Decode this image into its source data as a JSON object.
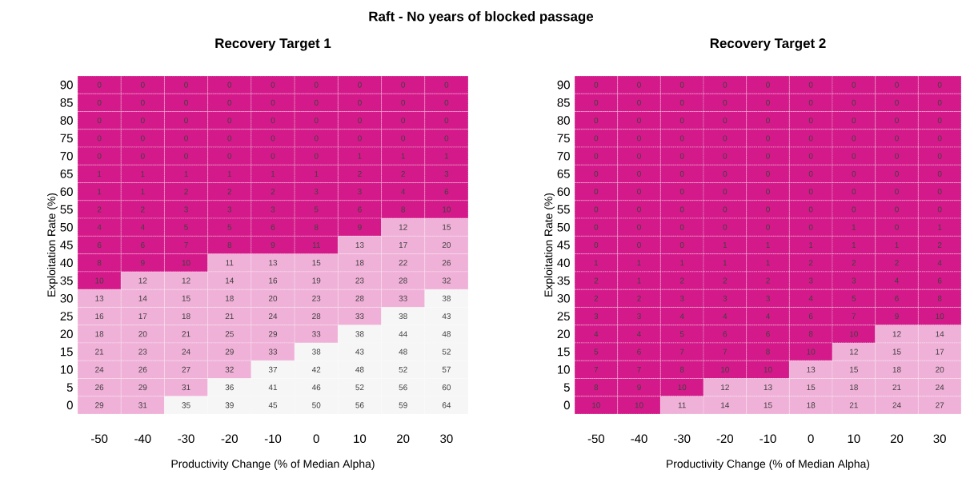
{
  "chart_data": [
    {
      "type": "heatmap",
      "title": "Raft - No years of blocked passage",
      "subtitle": "Recovery Target 1",
      "xlabel": "Productivity Change (% of Median Alpha)",
      "ylabel": "Exploitation Rate (%)",
      "data_labels": true,
      "categories": [
        "-50",
        "-40",
        "-30",
        "-20",
        "-10",
        "0",
        "10",
        "20",
        "30"
      ],
      "y_categories": [
        "90",
        "85",
        "80",
        "75",
        "70",
        "65",
        "60",
        "55",
        "50",
        "45",
        "40",
        "35",
        "30",
        "25",
        "20",
        "15",
        "10",
        "5",
        "0"
      ],
      "cells": [
        [
          0,
          0,
          0,
          0,
          0,
          0,
          0,
          0,
          0
        ],
        [
          0,
          0,
          0,
          0,
          0,
          0,
          0,
          0,
          0
        ],
        [
          0,
          0,
          0,
          0,
          0,
          0,
          0,
          0,
          0
        ],
        [
          0,
          0,
          0,
          0,
          0,
          0,
          0,
          0,
          0
        ],
        [
          0,
          0,
          0,
          0,
          0,
          0,
          1,
          1,
          1
        ],
        [
          1,
          1,
          1,
          1,
          1,
          1,
          2,
          2,
          3
        ],
        [
          1,
          1,
          2,
          2,
          2,
          3,
          3,
          4,
          6
        ],
        [
          2,
          2,
          3,
          3,
          3,
          5,
          6,
          8,
          10
        ],
        [
          4,
          4,
          5,
          5,
          6,
          8,
          9,
          12,
          15
        ],
        [
          6,
          6,
          7,
          8,
          9,
          11,
          13,
          17,
          20
        ],
        [
          8,
          9,
          10,
          11,
          13,
          15,
          18,
          22,
          26
        ],
        [
          10,
          12,
          12,
          14,
          16,
          19,
          23,
          28,
          32
        ],
        [
          13,
          14,
          15,
          18,
          20,
          23,
          28,
          33,
          38
        ],
        [
          16,
          17,
          18,
          21,
          24,
          28,
          33,
          38,
          43
        ],
        [
          18,
          20,
          21,
          25,
          29,
          33,
          38,
          44,
          48
        ],
        [
          21,
          23,
          24,
          29,
          33,
          38,
          43,
          48,
          52
        ],
        [
          24,
          26,
          27,
          32,
          37,
          42,
          48,
          52,
          57
        ],
        [
          26,
          29,
          31,
          36,
          41,
          46,
          52,
          56,
          60
        ],
        [
          29,
          31,
          35,
          39,
          45,
          50,
          56,
          59,
          64
        ]
      ],
      "colors": [
        [
          "#d41a8a",
          "#d41a8a",
          "#d41a8a",
          "#d41a8a",
          "#d41a8a",
          "#d41a8a",
          "#d41a8a",
          "#d41a8a",
          "#d41a8a"
        ],
        [
          "#d41a8a",
          "#d41a8a",
          "#d41a8a",
          "#d41a8a",
          "#d41a8a",
          "#d41a8a",
          "#d41a8a",
          "#d41a8a",
          "#d41a8a"
        ],
        [
          "#d41a8a",
          "#d41a8a",
          "#d41a8a",
          "#d41a8a",
          "#d41a8a",
          "#d41a8a",
          "#d41a8a",
          "#d41a8a",
          "#d41a8a"
        ],
        [
          "#d41a8a",
          "#d41a8a",
          "#d41a8a",
          "#d41a8a",
          "#d41a8a",
          "#d41a8a",
          "#d41a8a",
          "#d41a8a",
          "#d41a8a"
        ],
        [
          "#d41a8a",
          "#d41a8a",
          "#d41a8a",
          "#d41a8a",
          "#d41a8a",
          "#d41a8a",
          "#d41a8a",
          "#d41a8a",
          "#d41a8a"
        ],
        [
          "#d41a8a",
          "#d41a8a",
          "#d41a8a",
          "#d41a8a",
          "#d41a8a",
          "#d41a8a",
          "#d41a8a",
          "#d41a8a",
          "#d41a8a"
        ],
        [
          "#d41a8a",
          "#d41a8a",
          "#d41a8a",
          "#d41a8a",
          "#d41a8a",
          "#d41a8a",
          "#d41a8a",
          "#d41a8a",
          "#d41a8a"
        ],
        [
          "#d41a8a",
          "#d41a8a",
          "#d41a8a",
          "#d41a8a",
          "#d41a8a",
          "#d41a8a",
          "#d41a8a",
          "#d41a8a",
          "#d41a8a"
        ],
        [
          "#d41a8a",
          "#d41a8a",
          "#d41a8a",
          "#d41a8a",
          "#d41a8a",
          "#d41a8a",
          "#d41a8a",
          "#f0b1d8",
          "#f0b1d8"
        ],
        [
          "#d41a8a",
          "#d41a8a",
          "#d41a8a",
          "#d41a8a",
          "#d41a8a",
          "#d41a8a",
          "#f0b1d8",
          "#f0b1d8",
          "#f0b1d8"
        ],
        [
          "#d41a8a",
          "#d41a8a",
          "#d41a8a",
          "#f0b1d8",
          "#f0b1d8",
          "#f0b1d8",
          "#f0b1d8",
          "#f0b1d8",
          "#f0b1d8"
        ],
        [
          "#d41a8a",
          "#f0b1d8",
          "#f0b1d8",
          "#f0b1d8",
          "#f0b1d8",
          "#f0b1d8",
          "#f0b1d8",
          "#f0b1d8",
          "#f0b1d8"
        ],
        [
          "#f0b1d8",
          "#f0b1d8",
          "#f0b1d8",
          "#f0b1d8",
          "#f0b1d8",
          "#f0b1d8",
          "#f0b1d8",
          "#f0b1d8",
          "#f6f6f6"
        ],
        [
          "#f0b1d8",
          "#f0b1d8",
          "#f0b1d8",
          "#f0b1d8",
          "#f0b1d8",
          "#f0b1d8",
          "#f0b1d8",
          "#f6f6f6",
          "#f6f6f6"
        ],
        [
          "#f0b1d8",
          "#f0b1d8",
          "#f0b1d8",
          "#f0b1d8",
          "#f0b1d8",
          "#f0b1d8",
          "#f6f6f6",
          "#f6f6f6",
          "#f6f6f6"
        ],
        [
          "#f0b1d8",
          "#f0b1d8",
          "#f0b1d8",
          "#f0b1d8",
          "#f0b1d8",
          "#f6f6f6",
          "#f6f6f6",
          "#f6f6f6",
          "#f6f6f6"
        ],
        [
          "#f0b1d8",
          "#f0b1d8",
          "#f0b1d8",
          "#f0b1d8",
          "#f6f6f6",
          "#f6f6f6",
          "#f6f6f6",
          "#f6f6f6",
          "#f6f6f6"
        ],
        [
          "#f0b1d8",
          "#f0b1d8",
          "#f0b1d8",
          "#f6f6f6",
          "#f6f6f6",
          "#f6f6f6",
          "#f6f6f6",
          "#f6f6f6",
          "#f6f6f6"
        ],
        [
          "#f0b1d8",
          "#f0b1d8",
          "#f6f6f6",
          "#f6f6f6",
          "#f6f6f6",
          "#f6f6f6",
          "#f6f6f6",
          "#f6f6f6",
          "#f6f6f6"
        ]
      ]
    },
    {
      "type": "heatmap",
      "title": "Recovery Target 2",
      "xlabel": "Productivity Change (% of Median Alpha)",
      "ylabel": "Exploitation Rate (%)",
      "data_labels": true,
      "categories": [
        "-50",
        "-40",
        "-30",
        "-20",
        "-10",
        "0",
        "10",
        "20",
        "30"
      ],
      "y_categories": [
        "90",
        "85",
        "80",
        "75",
        "70",
        "65",
        "60",
        "55",
        "50",
        "45",
        "40",
        "35",
        "30",
        "25",
        "20",
        "15",
        "10",
        "5",
        "0"
      ],
      "cells": [
        [
          0,
          0,
          0,
          0,
          0,
          0,
          0,
          0,
          0
        ],
        [
          0,
          0,
          0,
          0,
          0,
          0,
          0,
          0,
          0
        ],
        [
          0,
          0,
          0,
          0,
          0,
          0,
          0,
          0,
          0
        ],
        [
          0,
          0,
          0,
          0,
          0,
          0,
          0,
          0,
          0
        ],
        [
          0,
          0,
          0,
          0,
          0,
          0,
          0,
          0,
          0
        ],
        [
          0,
          0,
          0,
          0,
          0,
          0,
          0,
          0,
          0
        ],
        [
          0,
          0,
          0,
          0,
          0,
          0,
          0,
          0,
          0
        ],
        [
          0,
          0,
          0,
          0,
          0,
          0,
          0,
          0,
          0
        ],
        [
          0,
          0,
          0,
          0,
          0,
          0,
          1,
          0,
          1
        ],
        [
          0,
          0,
          0,
          1,
          1,
          1,
          1,
          1,
          2
        ],
        [
          1,
          1,
          1,
          1,
          1,
          2,
          2,
          2,
          4
        ],
        [
          2,
          1,
          2,
          2,
          2,
          3,
          3,
          4,
          6
        ],
        [
          2,
          2,
          3,
          3,
          3,
          4,
          5,
          6,
          8
        ],
        [
          3,
          3,
          4,
          4,
          4,
          6,
          7,
          9,
          10
        ],
        [
          4,
          4,
          5,
          6,
          6,
          8,
          10,
          12,
          14
        ],
        [
          5,
          6,
          7,
          7,
          8,
          10,
          12,
          15,
          17
        ],
        [
          7,
          7,
          8,
          10,
          10,
          13,
          15,
          18,
          20
        ],
        [
          8,
          9,
          10,
          12,
          13,
          15,
          18,
          21,
          24
        ],
        [
          10,
          10,
          11,
          14,
          15,
          18,
          21,
          24,
          27
        ]
      ],
      "colors": [
        [
          "#d41a8a",
          "#d41a8a",
          "#d41a8a",
          "#d41a8a",
          "#d41a8a",
          "#d41a8a",
          "#d41a8a",
          "#d41a8a",
          "#d41a8a"
        ],
        [
          "#d41a8a",
          "#d41a8a",
          "#d41a8a",
          "#d41a8a",
          "#d41a8a",
          "#d41a8a",
          "#d41a8a",
          "#d41a8a",
          "#d41a8a"
        ],
        [
          "#d41a8a",
          "#d41a8a",
          "#d41a8a",
          "#d41a8a",
          "#d41a8a",
          "#d41a8a",
          "#d41a8a",
          "#d41a8a",
          "#d41a8a"
        ],
        [
          "#d41a8a",
          "#d41a8a",
          "#d41a8a",
          "#d41a8a",
          "#d41a8a",
          "#d41a8a",
          "#d41a8a",
          "#d41a8a",
          "#d41a8a"
        ],
        [
          "#d41a8a",
          "#d41a8a",
          "#d41a8a",
          "#d41a8a",
          "#d41a8a",
          "#d41a8a",
          "#d41a8a",
          "#d41a8a",
          "#d41a8a"
        ],
        [
          "#d41a8a",
          "#d41a8a",
          "#d41a8a",
          "#d41a8a",
          "#d41a8a",
          "#d41a8a",
          "#d41a8a",
          "#d41a8a",
          "#d41a8a"
        ],
        [
          "#d41a8a",
          "#d41a8a",
          "#d41a8a",
          "#d41a8a",
          "#d41a8a",
          "#d41a8a",
          "#d41a8a",
          "#d41a8a",
          "#d41a8a"
        ],
        [
          "#d41a8a",
          "#d41a8a",
          "#d41a8a",
          "#d41a8a",
          "#d41a8a",
          "#d41a8a",
          "#d41a8a",
          "#d41a8a",
          "#d41a8a"
        ],
        [
          "#d41a8a",
          "#d41a8a",
          "#d41a8a",
          "#d41a8a",
          "#d41a8a",
          "#d41a8a",
          "#d41a8a",
          "#d41a8a",
          "#d41a8a"
        ],
        [
          "#d41a8a",
          "#d41a8a",
          "#d41a8a",
          "#d41a8a",
          "#d41a8a",
          "#d41a8a",
          "#d41a8a",
          "#d41a8a",
          "#d41a8a"
        ],
        [
          "#d41a8a",
          "#d41a8a",
          "#d41a8a",
          "#d41a8a",
          "#d41a8a",
          "#d41a8a",
          "#d41a8a",
          "#d41a8a",
          "#d41a8a"
        ],
        [
          "#d41a8a",
          "#d41a8a",
          "#d41a8a",
          "#d41a8a",
          "#d41a8a",
          "#d41a8a",
          "#d41a8a",
          "#d41a8a",
          "#d41a8a"
        ],
        [
          "#d41a8a",
          "#d41a8a",
          "#d41a8a",
          "#d41a8a",
          "#d41a8a",
          "#d41a8a",
          "#d41a8a",
          "#d41a8a",
          "#d41a8a"
        ],
        [
          "#d41a8a",
          "#d41a8a",
          "#d41a8a",
          "#d41a8a",
          "#d41a8a",
          "#d41a8a",
          "#d41a8a",
          "#d41a8a",
          "#d41a8a"
        ],
        [
          "#d41a8a",
          "#d41a8a",
          "#d41a8a",
          "#d41a8a",
          "#d41a8a",
          "#d41a8a",
          "#d41a8a",
          "#f0b1d8",
          "#f0b1d8"
        ],
        [
          "#d41a8a",
          "#d41a8a",
          "#d41a8a",
          "#d41a8a",
          "#d41a8a",
          "#d41a8a",
          "#f0b1d8",
          "#f0b1d8",
          "#f0b1d8"
        ],
        [
          "#d41a8a",
          "#d41a8a",
          "#d41a8a",
          "#d41a8a",
          "#d41a8a",
          "#f0b1d8",
          "#f0b1d8",
          "#f0b1d8",
          "#f0b1d8"
        ],
        [
          "#d41a8a",
          "#d41a8a",
          "#d41a8a",
          "#f0b1d8",
          "#f0b1d8",
          "#f0b1d8",
          "#f0b1d8",
          "#f0b1d8",
          "#f0b1d8"
        ],
        [
          "#d41a8a",
          "#d41a8a",
          "#f0b1d8",
          "#f0b1d8",
          "#f0b1d8",
          "#f0b1d8",
          "#f0b1d8",
          "#f0b1d8",
          "#f0b1d8"
        ]
      ]
    }
  ]
}
